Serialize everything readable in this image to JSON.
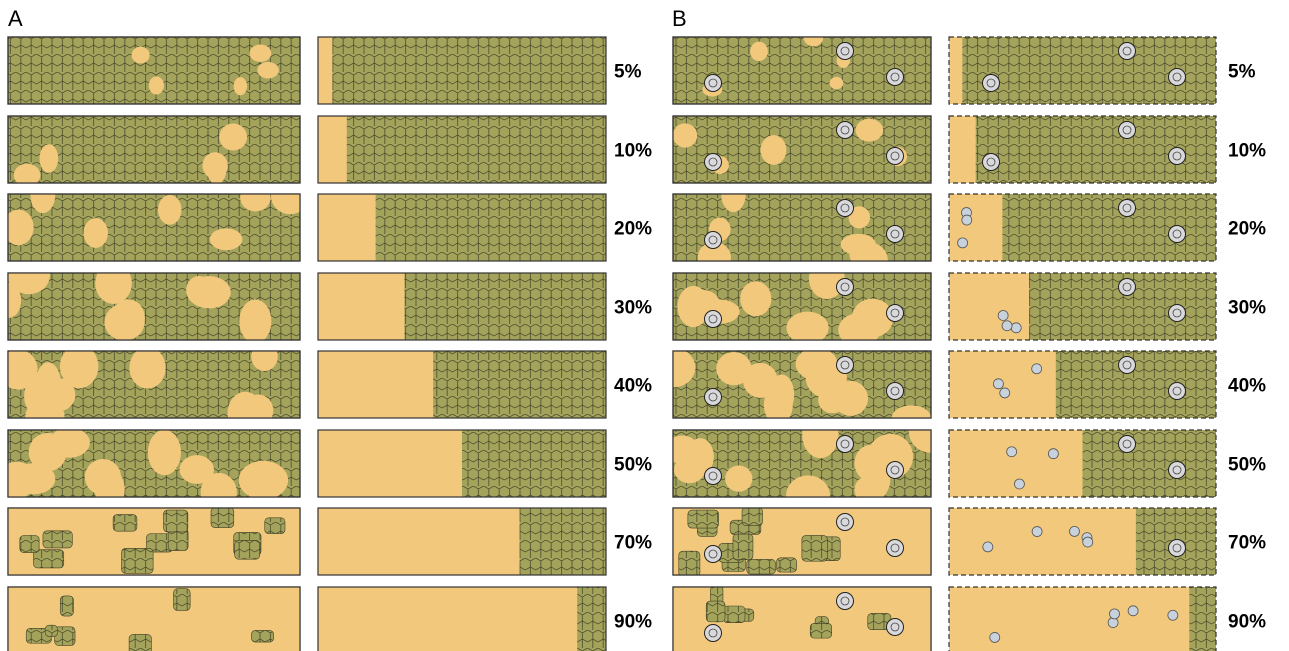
{
  "panels": [
    {
      "letter": "A"
    },
    {
      "letter": "B"
    }
  ],
  "rows": [
    {
      "label": "5%",
      "fraction": 0.05,
      "dispersed_dots": 0,
      "ordered_dots": 0
    },
    {
      "label": "10%",
      "fraction": 0.1,
      "dispersed_dots": 0,
      "ordered_dots": 0
    },
    {
      "label": "20%",
      "fraction": 0.2,
      "dispersed_dots": 0,
      "ordered_dots": 3
    },
    {
      "label": "30%",
      "fraction": 0.3,
      "dispersed_dots": 0,
      "ordered_dots": 3
    },
    {
      "label": "40%",
      "fraction": 0.4,
      "dispersed_dots": 0,
      "ordered_dots": 3
    },
    {
      "label": "50%",
      "fraction": 0.5,
      "dispersed_dots": 0,
      "ordered_dots": 3
    },
    {
      "label": "70%",
      "fraction": 0.7,
      "dispersed_dots": 0,
      "ordered_dots": 5
    },
    {
      "label": "90%",
      "fraction": 0.9,
      "dispersed_dots": 0,
      "ordered_dots": 5
    }
  ],
  "colors": {
    "hex_fill": "#a4a35c",
    "hex_stroke": "#3e3e24",
    "open_area": "#f2c97c",
    "frame": "#333333",
    "light_dot": "#c8d2dc",
    "crater": "#d9d9dc"
  },
  "icons": {
    "crater_marker": "crater-icon",
    "small_dot": "dot-icon"
  }
}
